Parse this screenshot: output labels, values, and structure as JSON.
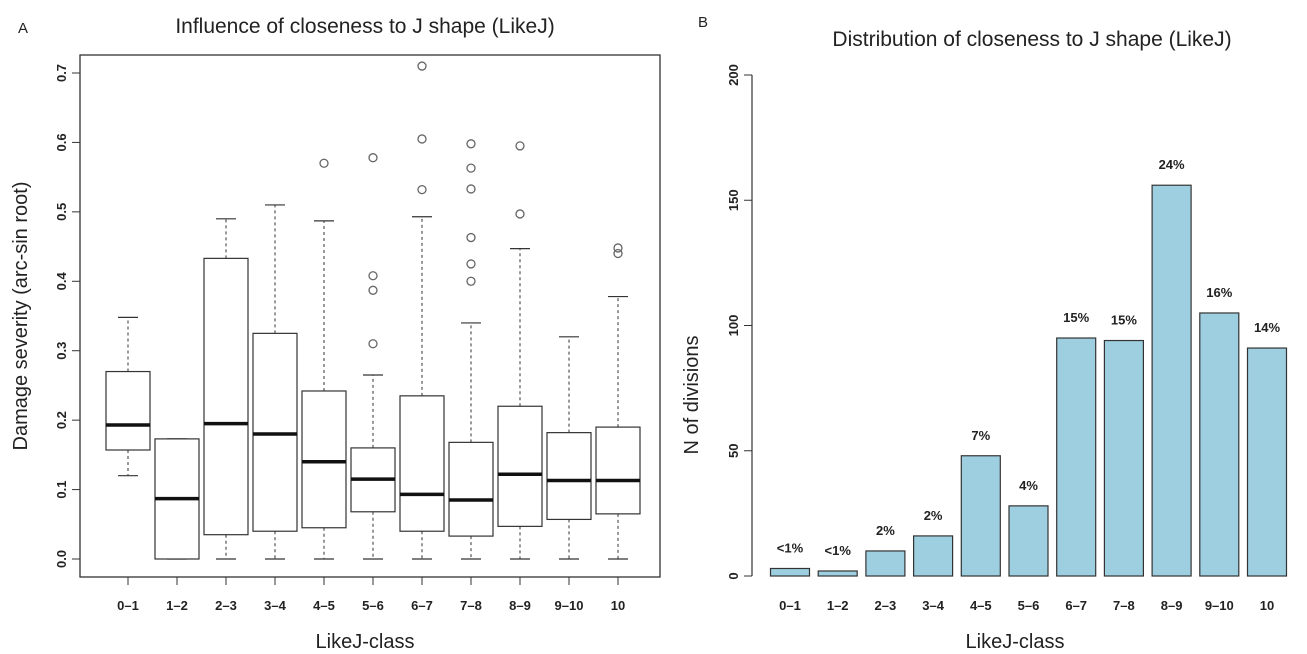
{
  "chart_data": [
    {
      "type": "boxplot",
      "panel_label": "A",
      "title": "Influence of closeness to J shape (LikeJ)",
      "xlabel": "LikeJ-class",
      "ylabel": "Damage severity (arc-sin root)",
      "ylim": [
        0,
        0.7
      ],
      "yticks": [
        "0.0",
        "0.1",
        "0.2",
        "0.3",
        "0.4",
        "0.5",
        "0.6",
        "0.7"
      ],
      "categories": [
        "0–1",
        "1–2",
        "2–3",
        "3–4",
        "4–5",
        "5–6",
        "6–7",
        "7–8",
        "8–9",
        "9–10",
        "10"
      ],
      "boxes": [
        {
          "min": 0.12,
          "q1": 0.157,
          "median": 0.193,
          "q3": 0.27,
          "max": 0.348,
          "outliers": []
        },
        {
          "min": 0.0,
          "q1": 0.0,
          "median": 0.087,
          "q3": 0.173,
          "max": 0.173,
          "outliers": []
        },
        {
          "min": 0.0,
          "q1": 0.035,
          "median": 0.195,
          "q3": 0.433,
          "max": 0.49,
          "outliers": []
        },
        {
          "min": 0.0,
          "q1": 0.04,
          "median": 0.18,
          "q3": 0.325,
          "max": 0.51,
          "outliers": []
        },
        {
          "min": 0.0,
          "q1": 0.045,
          "median": 0.14,
          "q3": 0.242,
          "max": 0.487,
          "outliers": [
            0.57
          ]
        },
        {
          "min": 0.0,
          "q1": 0.068,
          "median": 0.115,
          "q3": 0.16,
          "max": 0.265,
          "outliers": [
            0.31,
            0.387,
            0.408,
            0.578
          ]
        },
        {
          "min": 0.0,
          "q1": 0.04,
          "median": 0.093,
          "q3": 0.235,
          "max": 0.493,
          "outliers": [
            0.532,
            0.605,
            0.71
          ]
        },
        {
          "min": 0.0,
          "q1": 0.033,
          "median": 0.085,
          "q3": 0.168,
          "max": 0.34,
          "outliers": [
            0.4,
            0.425,
            0.463,
            0.533,
            0.563,
            0.598
          ]
        },
        {
          "min": 0.0,
          "q1": 0.047,
          "median": 0.122,
          "q3": 0.22,
          "max": 0.447,
          "outliers": [
            0.497,
            0.595
          ]
        },
        {
          "min": 0.0,
          "q1": 0.057,
          "median": 0.113,
          "q3": 0.182,
          "max": 0.32,
          "outliers": []
        },
        {
          "min": 0.0,
          "q1": 0.065,
          "median": 0.113,
          "q3": 0.19,
          "max": 0.378,
          "outliers": [
            0.44,
            0.448
          ]
        }
      ]
    },
    {
      "type": "bar",
      "panel_label": "B",
      "title": "Distribution of closeness to J shape (LikeJ)",
      "xlabel": "LikeJ-class",
      "ylabel": "N of divisions",
      "ylim": [
        0,
        200
      ],
      "yticks": [
        "0",
        "50",
        "100",
        "150",
        "200"
      ],
      "categories": [
        "0–1",
        "1–2",
        "2–3",
        "3–4",
        "4–5",
        "5–6",
        "6–7",
        "7–8",
        "8–9",
        "9–10",
        "10"
      ],
      "values": [
        3,
        2,
        10,
        16,
        48,
        28,
        95,
        94,
        156,
        105,
        91
      ],
      "labels": [
        "<1%",
        "<1%",
        "2%",
        "2%",
        "7%",
        "4%",
        "15%",
        "15%",
        "24%",
        "16%",
        "14%"
      ],
      "bar_color": "#9dcfe0"
    }
  ]
}
